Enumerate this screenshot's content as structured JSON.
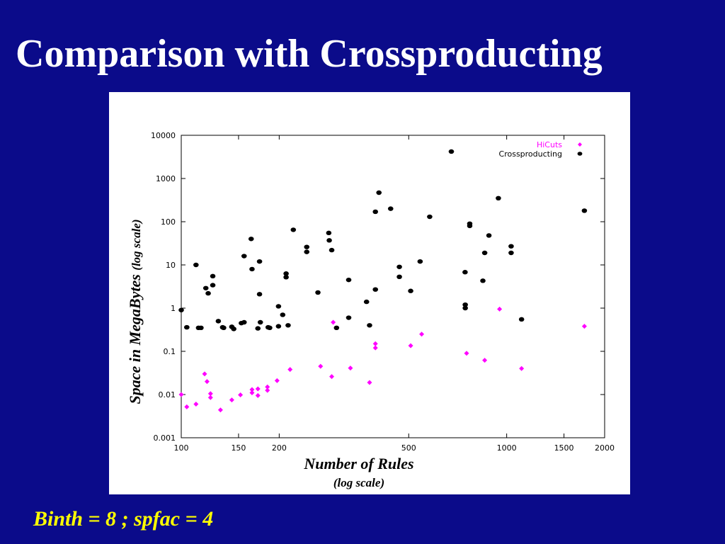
{
  "slide": {
    "title": "Comparison with Crossproducting",
    "footer": "Binth = 8 ; spfac = 4"
  },
  "colors": {
    "background": "#0b0b8a",
    "title": "#ffffff",
    "footer": "#ffff00",
    "hicuts": "#ff00ff",
    "crossproducting": "#000000"
  },
  "chart_data": {
    "type": "scatter",
    "xlabel": "Number of Rules",
    "xlabel_note": "(log scale)",
    "ylabel": "Space in MegaBytes",
    "ylabel_note": "(log scale)",
    "x_scale": "log",
    "y_scale": "log",
    "xlim": [
      100,
      2000
    ],
    "ylim": [
      0.001,
      10000
    ],
    "x_ticks": [
      100,
      150,
      200,
      500,
      1000,
      1500,
      2000
    ],
    "y_ticks": [
      0.001,
      0.01,
      0.1,
      1,
      10,
      100,
      1000,
      10000
    ],
    "x_tick_labels": [
      "100",
      "150",
      "200",
      "500",
      "1000",
      "1500",
      "2000"
    ],
    "y_tick_labels": [
      "0.001",
      "0.01",
      "0.1",
      "1",
      "10",
      "100",
      "1000",
      "10000"
    ],
    "grid": false,
    "legend_position": "top-right",
    "series": [
      {
        "name": "HiCuts",
        "color": "#ff00ff",
        "marker": "diamond",
        "points": [
          [
            100,
            0.01
          ],
          [
            104,
            0.0052
          ],
          [
            111,
            0.006
          ],
          [
            118,
            0.03
          ],
          [
            120,
            0.02
          ],
          [
            123,
            0.0105
          ],
          [
            123,
            0.0085
          ],
          [
            132,
            0.0044
          ],
          [
            143,
            0.0075
          ],
          [
            152,
            0.0098
          ],
          [
            165,
            0.013
          ],
          [
            165,
            0.011
          ],
          [
            172,
            0.0135
          ],
          [
            172,
            0.0095
          ],
          [
            184,
            0.015
          ],
          [
            184,
            0.0125
          ],
          [
            197,
            0.021
          ],
          [
            216,
            0.038
          ],
          [
            268,
            0.045
          ],
          [
            290,
            0.026
          ],
          [
            293,
            0.47
          ],
          [
            331,
            0.041
          ],
          [
            379,
            0.019
          ],
          [
            395,
            0.15
          ],
          [
            395,
            0.12
          ],
          [
            507,
            0.135
          ],
          [
            548,
            0.25
          ],
          [
            753,
            0.09
          ],
          [
            856,
            0.062
          ],
          [
            951,
            0.95
          ],
          [
            1111,
            0.04
          ],
          [
            1733,
            0.38
          ]
        ]
      },
      {
        "name": "Crossproducting",
        "color": "#000000",
        "marker": "circle",
        "points": [
          [
            100,
            0.9
          ],
          [
            104,
            0.36
          ],
          [
            111,
            10
          ],
          [
            113,
            0.35
          ],
          [
            115,
            0.35
          ],
          [
            119,
            2.9
          ],
          [
            121,
            2.2
          ],
          [
            125,
            5.5
          ],
          [
            125,
            3.4
          ],
          [
            130,
            0.5
          ],
          [
            134,
            0.36
          ],
          [
            135,
            0.35
          ],
          [
            143,
            0.37
          ],
          [
            145,
            0.33
          ],
          [
            153,
            0.45
          ],
          [
            156,
            0.47
          ],
          [
            156,
            16
          ],
          [
            164,
            40
          ],
          [
            165,
            8
          ],
          [
            172,
            0.34
          ],
          [
            174,
            2.1
          ],
          [
            174,
            12
          ],
          [
            175,
            0.47
          ],
          [
            185,
            0.36
          ],
          [
            187,
            0.35
          ],
          [
            199,
            1.1
          ],
          [
            199,
            0.38
          ],
          [
            205,
            0.7
          ],
          [
            210,
            5.2
          ],
          [
            210,
            6.3
          ],
          [
            213,
            0.4
          ],
          [
            221,
            65
          ],
          [
            243,
            26
          ],
          [
            243,
            20
          ],
          [
            263,
            2.3
          ],
          [
            284,
            55
          ],
          [
            285,
            37
          ],
          [
            290,
            22
          ],
          [
            300,
            0.35
          ],
          [
            327,
            4.5
          ],
          [
            327,
            0.6
          ],
          [
            371,
            1.4
          ],
          [
            379,
            0.4
          ],
          [
            395,
            170
          ],
          [
            395,
            2.7
          ],
          [
            405,
            470
          ],
          [
            440,
            200
          ],
          [
            468,
            9
          ],
          [
            468,
            5.3
          ],
          [
            507,
            2.5
          ],
          [
            542,
            12
          ],
          [
            580,
            130
          ],
          [
            676,
            4200
          ],
          [
            745,
            6.8
          ],
          [
            746,
            1.2
          ],
          [
            746,
            1.0
          ],
          [
            770,
            90
          ],
          [
            770,
            80
          ],
          [
            845,
            4.3
          ],
          [
            856,
            19
          ],
          [
            882,
            48
          ],
          [
            943,
            350
          ],
          [
            1032,
            27
          ],
          [
            1032,
            19
          ],
          [
            1111,
            0.55
          ],
          [
            1733,
            180
          ]
        ]
      }
    ]
  }
}
